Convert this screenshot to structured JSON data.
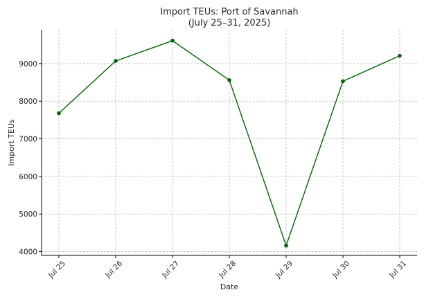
{
  "chart_data": {
    "type": "line",
    "title": "Import TEUs: Port of Savannah",
    "subtitle": "(July 25–31, 2025)",
    "xlabel": "Date",
    "ylabel": "Import TEUs",
    "categories": [
      "Jul 25",
      "Jul 26",
      "Jul 27",
      "Jul 28",
      "Jul 29",
      "Jul 30",
      "Jul 31"
    ],
    "series": [
      {
        "values": [
          7680,
          9070,
          9610,
          8560,
          4160,
          8530,
          9210
        ],
        "color": "#006400"
      }
    ],
    "yticks": [
      4000,
      5000,
      6000,
      7000,
      8000,
      9000
    ],
    "ylim": [
      3900,
      9900
    ],
    "grid": true,
    "legend": "none"
  }
}
